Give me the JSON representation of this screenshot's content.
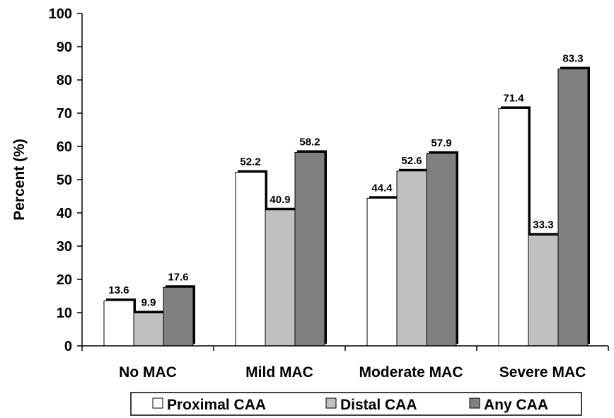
{
  "chart_data": {
    "type": "bar",
    "title": "",
    "xlabel": "",
    "ylabel": "Percent (%)",
    "ylim": [
      0,
      100
    ],
    "yticks": [
      0,
      10,
      20,
      30,
      40,
      50,
      60,
      70,
      80,
      90,
      100
    ],
    "grid": false,
    "legend_position": "bottom",
    "categories": [
      "No MAC",
      "Mild MAC",
      "Moderate MAC",
      "Severe MAC"
    ],
    "series": [
      {
        "name": "Proximal CAA",
        "values": [
          13.6,
          52.2,
          44.4,
          71.4
        ],
        "labels": [
          "13.6",
          "52.2",
          "44.4",
          "71.4"
        ],
        "color": "#ffffff"
      },
      {
        "name": "Distal CAA",
        "values": [
          9.9,
          40.9,
          52.6,
          33.3
        ],
        "labels": [
          "9.9",
          "40.9",
          "52.6",
          "33.3"
        ],
        "color": "#c0c0c0"
      },
      {
        "name": "Any CAA",
        "values": [
          17.6,
          58.2,
          57.9,
          83.3
        ],
        "labels": [
          "17.6",
          "58.2",
          "57.9",
          "83.3"
        ],
        "color": "#808080"
      }
    ]
  }
}
